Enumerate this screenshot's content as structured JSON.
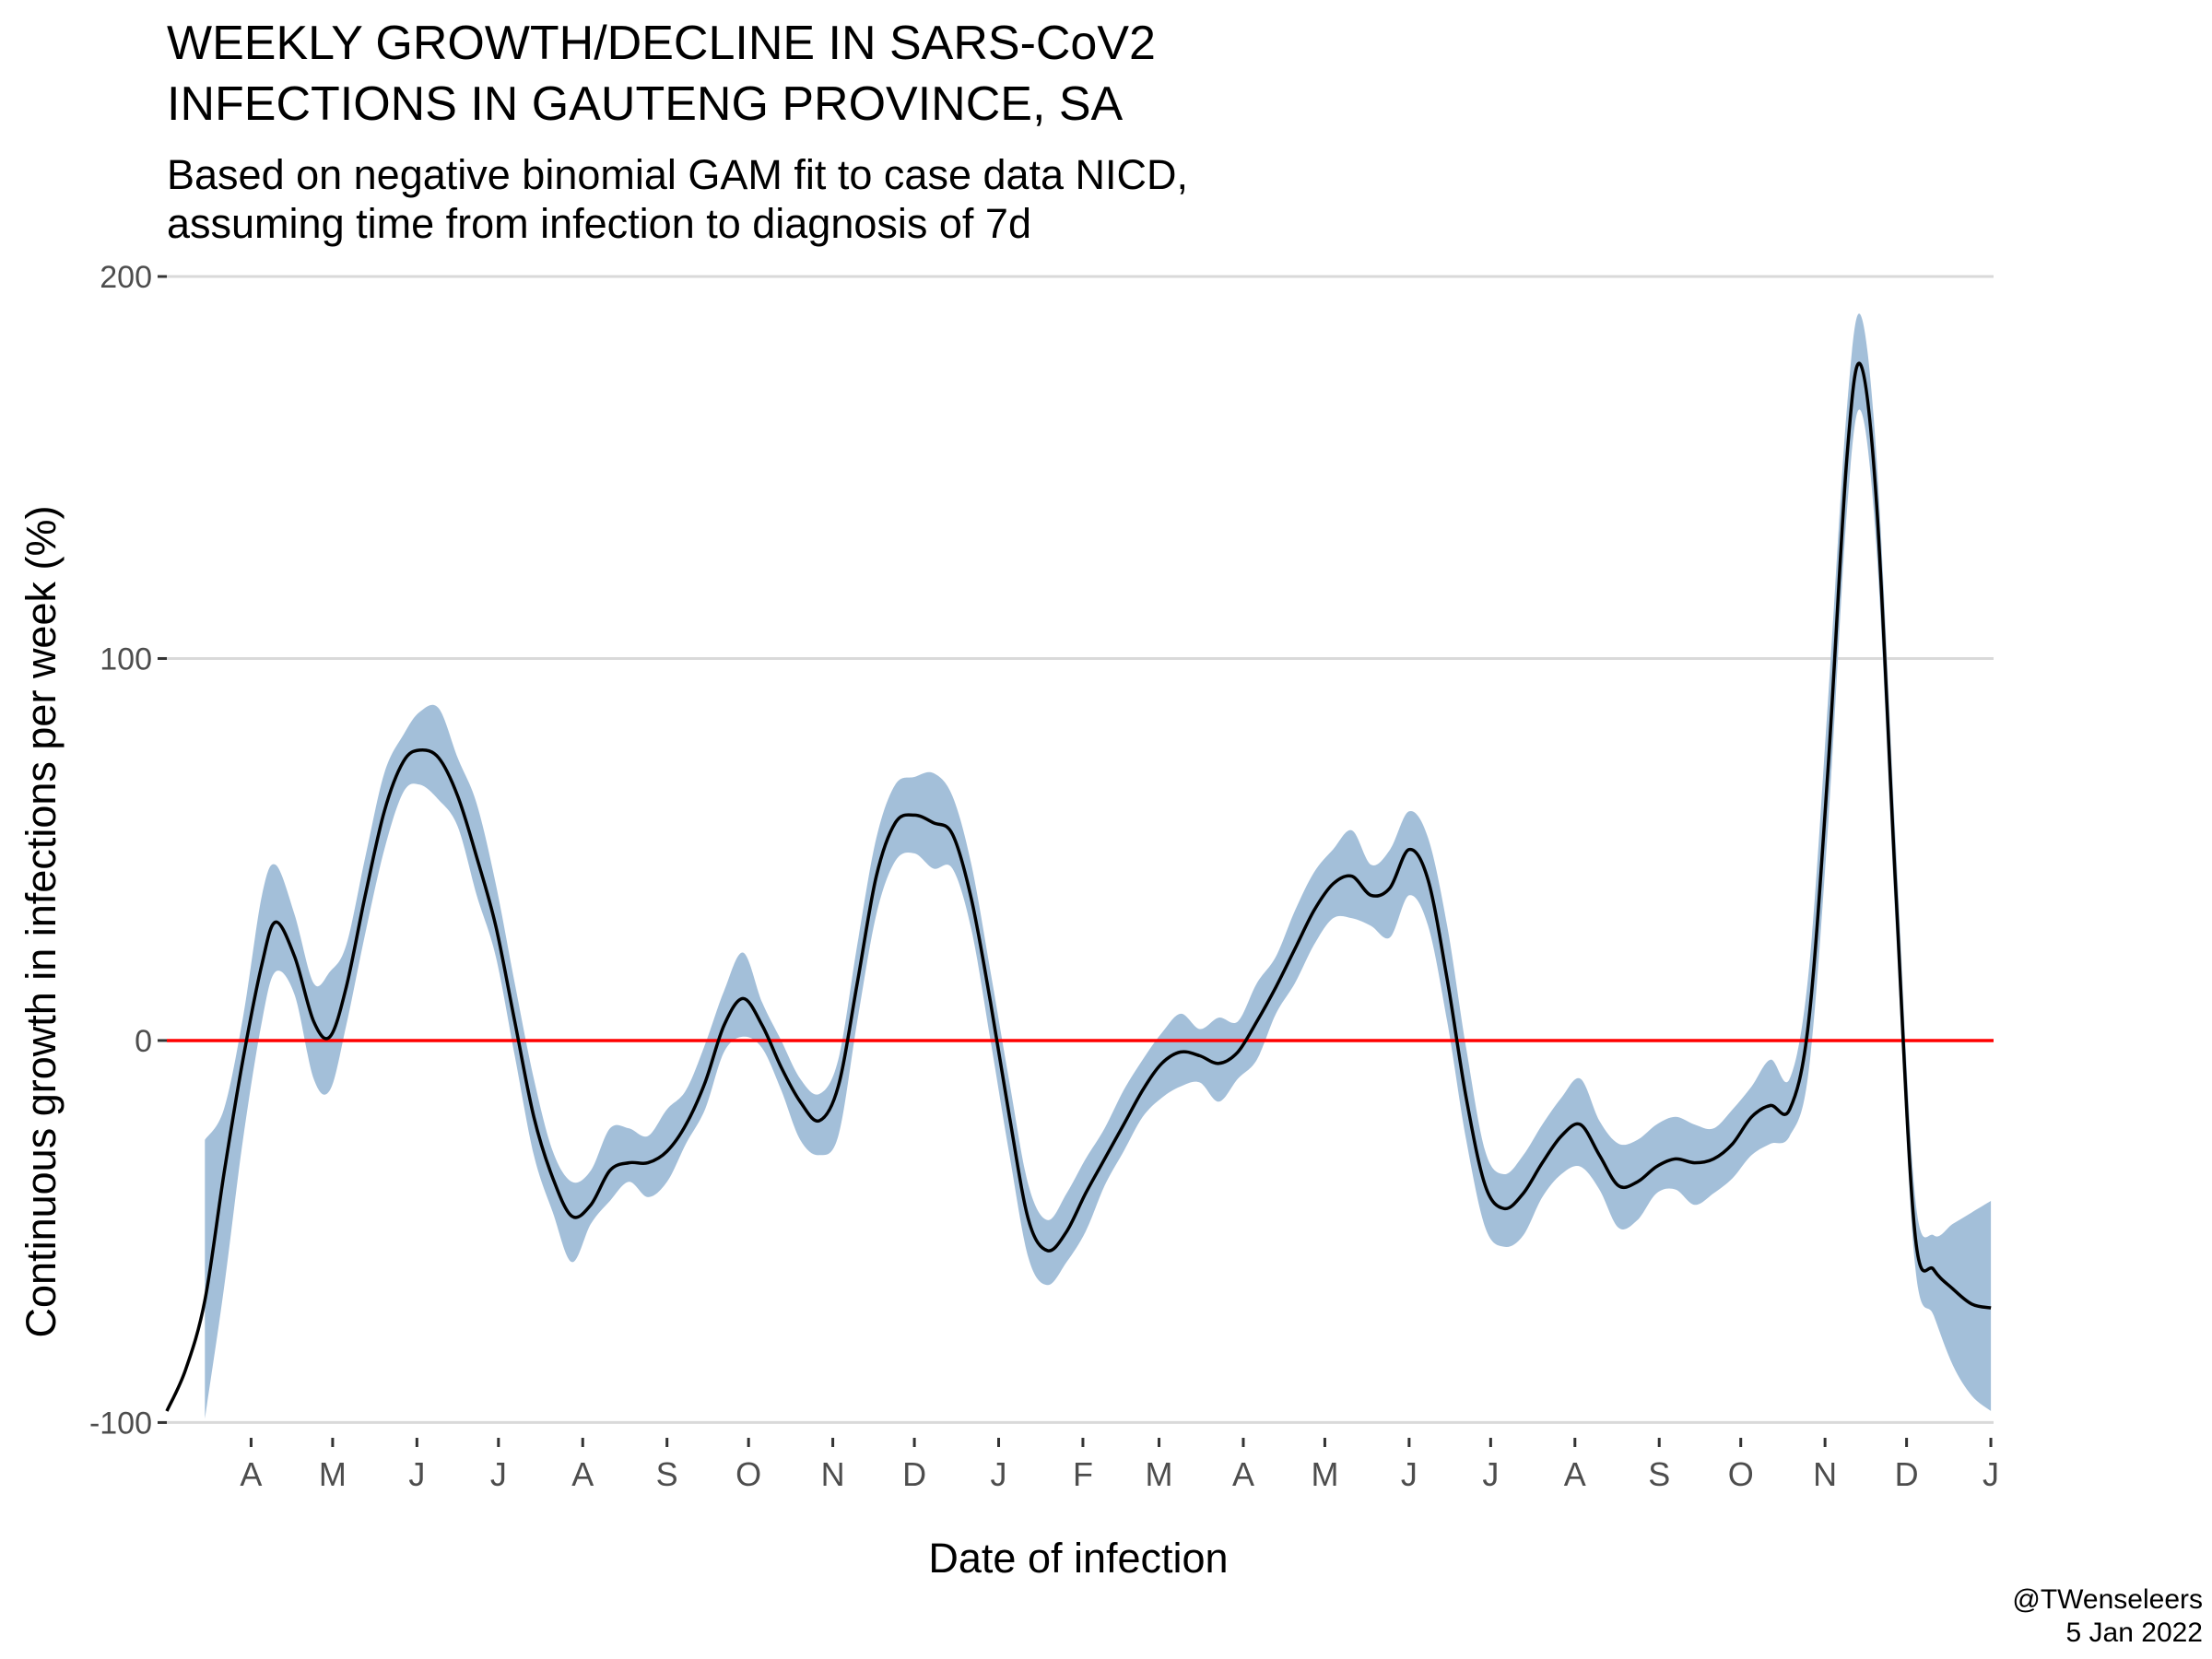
{
  "chart_data": {
    "type": "area",
    "title": [
      "WEEKLY GROWTH/DECLINE IN SARS-CoV2",
      "INFECTIONS IN GAUTENG PROVINCE, SA"
    ],
    "subtitle": [
      "Based on negative binomial GAM fit to case data NICD,",
      "assuming time from infection to diagnosis of 7d"
    ],
    "xlabel": "Date of infection",
    "ylabel": "Continuous growth in infections per week (%)",
    "ylim": [
      -104,
      200
    ],
    "yticks": [
      -100,
      0,
      100,
      200
    ],
    "ytick_labels": [
      "-100",
      "0",
      "100",
      "200"
    ],
    "xlim": [
      "2020-03-01",
      "2022-01-02"
    ],
    "xticks": [
      {
        "date": "2020-04-01",
        "label": "A"
      },
      {
        "date": "2020-05-01",
        "label": "M"
      },
      {
        "date": "2020-06-01",
        "label": "J"
      },
      {
        "date": "2020-07-01",
        "label": "J"
      },
      {
        "date": "2020-08-01",
        "label": "A"
      },
      {
        "date": "2020-09-01",
        "label": "S"
      },
      {
        "date": "2020-10-01",
        "label": "O"
      },
      {
        "date": "2020-11-01",
        "label": "N"
      },
      {
        "date": "2020-12-01",
        "label": "D"
      },
      {
        "date": "2021-01-01",
        "label": "J"
      },
      {
        "date": "2021-02-01",
        "label": "F"
      },
      {
        "date": "2021-03-01",
        "label": "M"
      },
      {
        "date": "2021-04-01",
        "label": "A"
      },
      {
        "date": "2021-05-01",
        "label": "M"
      },
      {
        "date": "2021-06-01",
        "label": "J"
      },
      {
        "date": "2021-07-01",
        "label": "J"
      },
      {
        "date": "2021-08-01",
        "label": "A"
      },
      {
        "date": "2021-09-01",
        "label": "S"
      },
      {
        "date": "2021-10-01",
        "label": "O"
      },
      {
        "date": "2021-11-01",
        "label": "N"
      },
      {
        "date": "2021-12-01",
        "label": "D"
      },
      {
        "date": "2022-01-01",
        "label": "J"
      }
    ],
    "grid": "horizontal major only",
    "reference_line": {
      "y": 0,
      "color": "#ff0000"
    },
    "colors": {
      "ribbon": "#a3bfd9",
      "line": "#000000",
      "grid": "#d9d9d9"
    },
    "series": [
      {
        "role": "estimate with confidence band",
        "points": [
          {
            "x": "2020-03-01",
            "y": -97,
            "lo": null,
            "hi": null
          },
          {
            "x": "2020-03-08",
            "y": -86,
            "lo": null,
            "hi": null
          },
          {
            "x": "2020-03-15",
            "y": -68,
            "lo": -99,
            "hi": -26
          },
          {
            "x": "2020-03-22",
            "y": -35,
            "lo": -65,
            "hi": -18
          },
          {
            "x": "2020-03-29",
            "y": -5,
            "lo": -26,
            "hi": 6
          },
          {
            "x": "2020-04-05",
            "y": 20,
            "lo": 5,
            "hi": 38
          },
          {
            "x": "2020-04-10",
            "y": 31,
            "lo": 18,
            "hi": 46
          },
          {
            "x": "2020-04-17",
            "y": 22,
            "lo": 12,
            "hi": 33
          },
          {
            "x": "2020-04-24",
            "y": 5,
            "lo": -10,
            "hi": 15
          },
          {
            "x": "2020-04-30",
            "y": 1,
            "lo": -13,
            "hi": 18
          },
          {
            "x": "2020-05-06",
            "y": 14,
            "lo": 4,
            "hi": 25
          },
          {
            "x": "2020-05-13",
            "y": 38,
            "lo": 28,
            "hi": 48
          },
          {
            "x": "2020-05-20",
            "y": 60,
            "lo": 50,
            "hi": 70
          },
          {
            "x": "2020-05-27",
            "y": 73,
            "lo": 65,
            "hi": 80
          },
          {
            "x": "2020-06-02",
            "y": 76,
            "lo": 67,
            "hi": 86
          },
          {
            "x": "2020-06-09",
            "y": 74,
            "lo": 63,
            "hi": 87
          },
          {
            "x": "2020-06-16",
            "y": 64,
            "lo": 56,
            "hi": 74
          },
          {
            "x": "2020-06-23",
            "y": 48,
            "lo": 38,
            "hi": 62
          },
          {
            "x": "2020-06-30",
            "y": 30,
            "lo": 22,
            "hi": 41
          },
          {
            "x": "2020-07-07",
            "y": 5,
            "lo": -4,
            "hi": 15
          },
          {
            "x": "2020-07-14",
            "y": -20,
            "lo": -30,
            "hi": -10
          },
          {
            "x": "2020-07-21",
            "y": -36,
            "lo": -45,
            "hi": -29
          },
          {
            "x": "2020-07-28",
            "y": -46,
            "lo": -58,
            "hi": -37
          },
          {
            "x": "2020-08-04",
            "y": -43,
            "lo": -48,
            "hi": -34
          },
          {
            "x": "2020-08-11",
            "y": -34,
            "lo": -42,
            "hi": -23
          },
          {
            "x": "2020-08-18",
            "y": -32,
            "lo": -37,
            "hi": -23
          },
          {
            "x": "2020-08-25",
            "y": -32,
            "lo": -41,
            "hi": -25
          },
          {
            "x": "2020-09-01",
            "y": -29,
            "lo": -37,
            "hi": -18
          },
          {
            "x": "2020-09-08",
            "y": -22,
            "lo": -27,
            "hi": -13
          },
          {
            "x": "2020-09-15",
            "y": -11,
            "lo": -18,
            "hi": -1
          },
          {
            "x": "2020-09-22",
            "y": 4,
            "lo": -3,
            "hi": 13
          },
          {
            "x": "2020-09-29",
            "y": 11,
            "lo": 1,
            "hi": 23
          },
          {
            "x": "2020-10-06",
            "y": 4,
            "lo": -2,
            "hi": 10
          },
          {
            "x": "2020-10-13",
            "y": -7,
            "lo": -13,
            "hi": 0
          },
          {
            "x": "2020-10-20",
            "y": -16,
            "lo": -26,
            "hi": -10
          },
          {
            "x": "2020-10-27",
            "y": -21,
            "lo": -30,
            "hi": -14
          },
          {
            "x": "2020-11-03",
            "y": -12,
            "lo": -25,
            "hi": -5
          },
          {
            "x": "2020-11-10",
            "y": 15,
            "lo": 5,
            "hi": 25
          },
          {
            "x": "2020-11-17",
            "y": 43,
            "lo": 33,
            "hi": 53
          },
          {
            "x": "2020-11-24",
            "y": 57,
            "lo": 47,
            "hi": 67
          },
          {
            "x": "2020-12-01",
            "y": 59,
            "lo": 49,
            "hi": 69
          },
          {
            "x": "2020-12-08",
            "y": 57,
            "lo": 45,
            "hi": 70
          },
          {
            "x": "2020-12-15",
            "y": 54,
            "lo": 45,
            "hi": 64
          },
          {
            "x": "2020-12-22",
            "y": 37,
            "lo": 29,
            "hi": 46
          },
          {
            "x": "2020-12-29",
            "y": 10,
            "lo": 0,
            "hi": 18
          },
          {
            "x": "2021-01-05",
            "y": -20,
            "lo": -30,
            "hi": -11
          },
          {
            "x": "2021-01-12",
            "y": -47,
            "lo": -57,
            "hi": -38
          },
          {
            "x": "2021-01-19",
            "y": -55,
            "lo": -64,
            "hi": -47
          },
          {
            "x": "2021-01-26",
            "y": -50,
            "lo": -58,
            "hi": -40
          },
          {
            "x": "2021-02-02",
            "y": -40,
            "lo": -50,
            "hi": -31
          },
          {
            "x": "2021-02-09",
            "y": -31,
            "lo": -38,
            "hi": -23
          },
          {
            "x": "2021-02-16",
            "y": -22,
            "lo": -29,
            "hi": -13
          },
          {
            "x": "2021-02-23",
            "y": -13,
            "lo": -20,
            "hi": -5
          },
          {
            "x": "2021-03-02",
            "y": -6,
            "lo": -15,
            "hi": 2
          },
          {
            "x": "2021-03-09",
            "y": -3,
            "lo": -12,
            "hi": 7
          },
          {
            "x": "2021-03-16",
            "y": -4,
            "lo": -11,
            "hi": 3
          },
          {
            "x": "2021-03-23",
            "y": -6,
            "lo": -16,
            "hi": 6
          },
          {
            "x": "2021-03-30",
            "y": -3,
            "lo": -10,
            "hi": 5
          },
          {
            "x": "2021-04-06",
            "y": 5,
            "lo": -5,
            "hi": 15
          },
          {
            "x": "2021-04-13",
            "y": 14,
            "lo": 7,
            "hi": 22
          },
          {
            "x": "2021-04-20",
            "y": 24,
            "lo": 15,
            "hi": 34
          },
          {
            "x": "2021-04-27",
            "y": 34,
            "lo": 25,
            "hi": 44
          },
          {
            "x": "2021-05-04",
            "y": 41,
            "lo": 32,
            "hi": 50
          },
          {
            "x": "2021-05-11",
            "y": 43,
            "lo": 32,
            "hi": 55
          },
          {
            "x": "2021-05-18",
            "y": 38,
            "lo": 30,
            "hi": 46
          },
          {
            "x": "2021-05-25",
            "y": 40,
            "lo": 27,
            "hi": 50
          },
          {
            "x": "2021-06-01",
            "y": 50,
            "lo": 38,
            "hi": 60
          },
          {
            "x": "2021-06-08",
            "y": 42,
            "lo": 30,
            "hi": 53
          },
          {
            "x": "2021-06-15",
            "y": 16,
            "lo": 5,
            "hi": 30
          },
          {
            "x": "2021-06-22",
            "y": -15,
            "lo": -26,
            "hi": -2
          },
          {
            "x": "2021-06-29",
            "y": -38,
            "lo": -49,
            "hi": -29
          },
          {
            "x": "2021-07-06",
            "y": -44,
            "lo": -54,
            "hi": -35
          },
          {
            "x": "2021-07-13",
            "y": -40,
            "lo": -51,
            "hi": -30
          },
          {
            "x": "2021-07-20",
            "y": -32,
            "lo": -41,
            "hi": -22
          },
          {
            "x": "2021-07-27",
            "y": -25,
            "lo": -35,
            "hi": -15
          },
          {
            "x": "2021-08-03",
            "y": -22,
            "lo": -33,
            "hi": -10
          },
          {
            "x": "2021-08-10",
            "y": -30,
            "lo": -39,
            "hi": -21
          },
          {
            "x": "2021-08-17",
            "y": -38,
            "lo": -49,
            "hi": -27
          },
          {
            "x": "2021-08-24",
            "y": -37,
            "lo": -47,
            "hi": -26
          },
          {
            "x": "2021-08-31",
            "y": -33,
            "lo": -40,
            "hi": -22
          },
          {
            "x": "2021-09-07",
            "y": -31,
            "lo": -39,
            "hi": -20
          },
          {
            "x": "2021-09-14",
            "y": -32,
            "lo": -43,
            "hi": -22
          },
          {
            "x": "2021-09-21",
            "y": -31,
            "lo": -40,
            "hi": -23
          },
          {
            "x": "2021-09-28",
            "y": -27,
            "lo": -36,
            "hi": -18
          },
          {
            "x": "2021-10-05",
            "y": -20,
            "lo": -30,
            "hi": -12
          },
          {
            "x": "2021-10-12",
            "y": -17,
            "lo": -27,
            "hi": -5
          },
          {
            "x": "2021-10-19",
            "y": -18,
            "lo": -25,
            "hi": -10
          },
          {
            "x": "2021-10-26",
            "y": 5,
            "lo": -8,
            "hi": 18
          },
          {
            "x": "2021-11-02",
            "y": 70,
            "lo": 55,
            "hi": 88
          },
          {
            "x": "2021-11-09",
            "y": 152,
            "lo": 138,
            "hi": 165
          },
          {
            "x": "2021-11-14",
            "y": 177,
            "lo": 165,
            "hi": 190
          },
          {
            "x": "2021-11-20",
            "y": 140,
            "lo": 128,
            "hi": 152
          },
          {
            "x": "2021-11-27",
            "y": 40,
            "lo": 30,
            "hi": 52
          },
          {
            "x": "2021-12-04",
            "y": -50,
            "lo": -58,
            "hi": -40
          },
          {
            "x": "2021-12-11",
            "y": -60,
            "lo": -72,
            "hi": -51
          },
          {
            "x": "2021-12-18",
            "y": -65,
            "lo": -85,
            "hi": -48
          },
          {
            "x": "2021-12-25",
            "y": -69,
            "lo": -93,
            "hi": -45
          },
          {
            "x": "2022-01-01",
            "y": -70,
            "lo": -97,
            "hi": -42
          }
        ]
      }
    ]
  },
  "caption": [
    "@TWenseleers",
    "5 Jan 2022"
  ]
}
